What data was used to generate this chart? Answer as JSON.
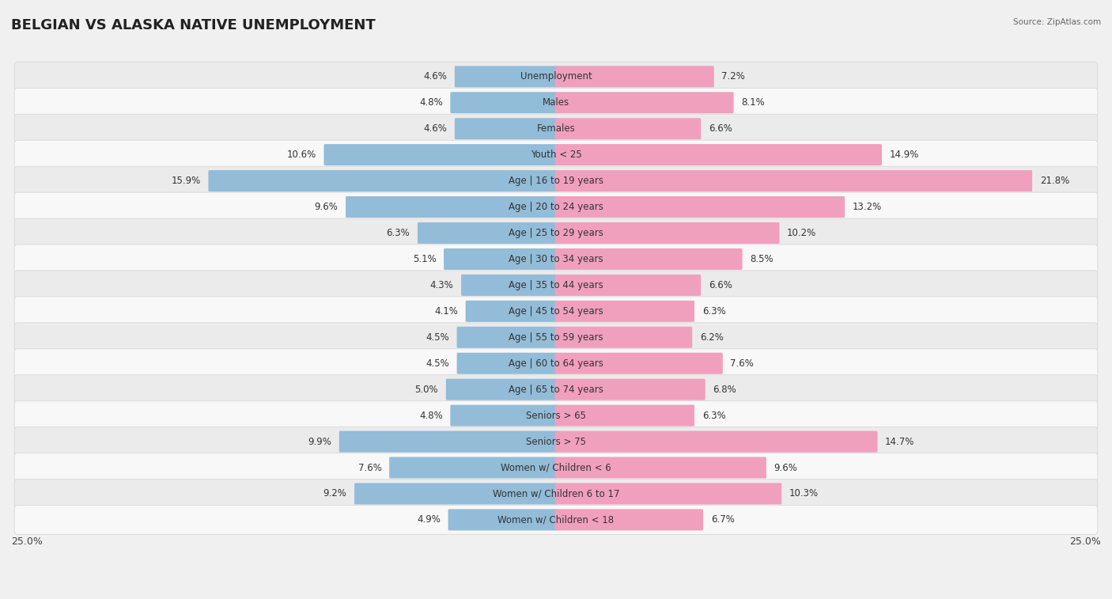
{
  "title": "BELGIAN VS ALASKA NATIVE UNEMPLOYMENT",
  "source": "Source: ZipAtlas.com",
  "categories": [
    "Unemployment",
    "Males",
    "Females",
    "Youth < 25",
    "Age | 16 to 19 years",
    "Age | 20 to 24 years",
    "Age | 25 to 29 years",
    "Age | 30 to 34 years",
    "Age | 35 to 44 years",
    "Age | 45 to 54 years",
    "Age | 55 to 59 years",
    "Age | 60 to 64 years",
    "Age | 65 to 74 years",
    "Seniors > 65",
    "Seniors > 75",
    "Women w/ Children < 6",
    "Women w/ Children 6 to 17",
    "Women w/ Children < 18"
  ],
  "belgian": [
    4.6,
    4.8,
    4.6,
    10.6,
    15.9,
    9.6,
    6.3,
    5.1,
    4.3,
    4.1,
    4.5,
    4.5,
    5.0,
    4.8,
    9.9,
    7.6,
    9.2,
    4.9
  ],
  "alaska_native": [
    7.2,
    8.1,
    6.6,
    14.9,
    21.8,
    13.2,
    10.2,
    8.5,
    6.6,
    6.3,
    6.2,
    7.6,
    6.8,
    6.3,
    14.7,
    9.6,
    10.3,
    6.7
  ],
  "belgian_color": "#92bcd8",
  "alaska_native_color": "#f0a0bc",
  "row_bg_light": "#ebebeb",
  "row_bg_white": "#f8f8f8",
  "xlim": 25.0,
  "title_fontsize": 13,
  "label_fontsize": 8.5,
  "value_fontsize": 8.5,
  "axis_label_fontsize": 9,
  "fig_bg": "#f0f0f0"
}
